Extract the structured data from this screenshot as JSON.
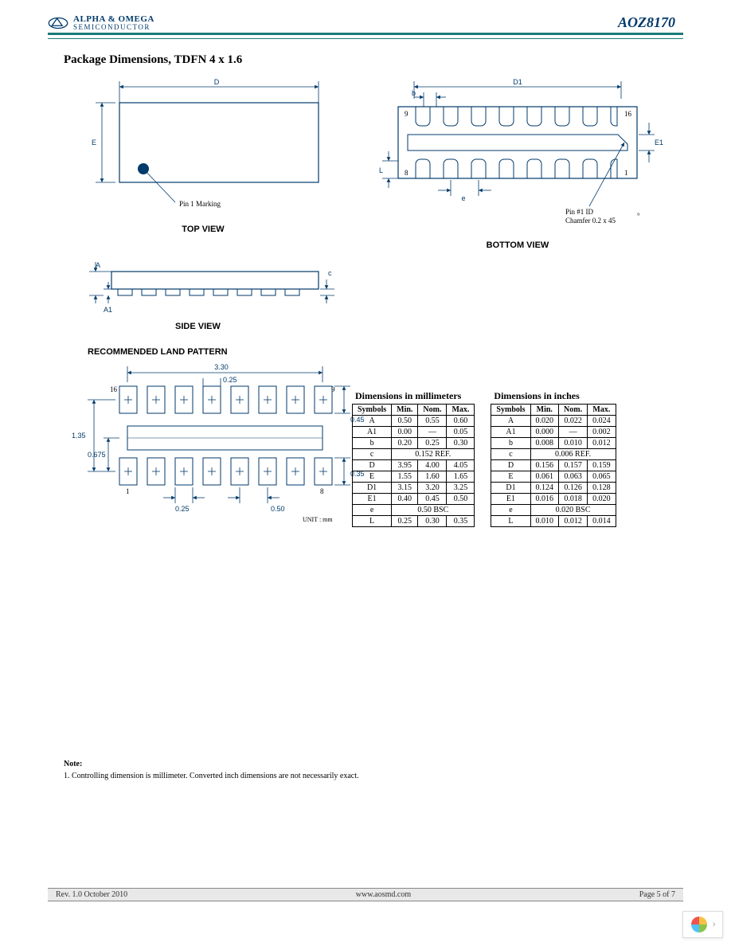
{
  "header": {
    "company_line1": "ALPHA & OMEGA",
    "company_line2": "SEMICONDUCTOR",
    "part_number": "AOZ8170"
  },
  "section_title": "Package Dimensions, TDFN 4 x 1.6",
  "diagrams": {
    "top_view": {
      "label": "TOP VIEW",
      "pin1_text": "Pin 1 Marking",
      "dim_D": "D",
      "dim_E": "E"
    },
    "bottom_view": {
      "label": "BOTTOM VIEW",
      "dim_D1": "D1",
      "dim_b": "b",
      "dim_E1": "E1",
      "dim_L": "L",
      "dim_e": "e",
      "pin9": "9",
      "pin16": "16",
      "pin8": "8",
      "pin1": "1",
      "pin1_id": "Pin #1 ID",
      "chamfer": "Chamfer 0.2 x 45",
      "deg": "°"
    },
    "side_view": {
      "label": "SIDE VIEW",
      "dim_A": "A",
      "dim_A1": "A1",
      "dim_c": "c"
    },
    "land_pattern": {
      "title": "RECOMMENDED LAND PATTERN",
      "unit": "UNIT : mm",
      "d_3_30": "3.30",
      "d_0_25": "0.25",
      "d_0_45": "0.45",
      "d_1_35": "1.35",
      "d_0_675": "0.675",
      "d_0_50": "0.50",
      "d_0_35": "0.35",
      "p16": "16",
      "p9": "9",
      "p1": "1",
      "p8": "8"
    }
  },
  "tables": {
    "mm": {
      "caption": "Dimensions in millimeters",
      "headers": [
        "Symbols",
        "Min.",
        "Nom.",
        "Max."
      ],
      "rows": [
        [
          "A",
          "0.50",
          "0.55",
          "0.60"
        ],
        [
          "A1",
          "0.00",
          "—",
          "0.05"
        ],
        [
          "b",
          "0.20",
          "0.25",
          "0.30"
        ],
        [
          "c",
          "0.152 REF.",
          "",
          ""
        ],
        [
          "D",
          "3.95",
          "4.00",
          "4.05"
        ],
        [
          "E",
          "1.55",
          "1.60",
          "1.65"
        ],
        [
          "D1",
          "3.15",
          "3.20",
          "3.25"
        ],
        [
          "E1",
          "0.40",
          "0.45",
          "0.50"
        ],
        [
          "e",
          "0.50 BSC",
          "",
          ""
        ],
        [
          "L",
          "0.25",
          "0.30",
          "0.35"
        ]
      ]
    },
    "in": {
      "caption": "Dimensions in inches",
      "headers": [
        "Symbols",
        "Min.",
        "Nom.",
        "Max."
      ],
      "rows": [
        [
          "A",
          "0.020",
          "0.022",
          "0.024"
        ],
        [
          "A1",
          "0.000",
          "—",
          "0.002"
        ],
        [
          "b",
          "0.008",
          "0.010",
          "0.012"
        ],
        [
          "c",
          "0.006 REF.",
          "",
          ""
        ],
        [
          "D",
          "0.156",
          "0.157",
          "0.159"
        ],
        [
          "E",
          "0.061",
          "0.063",
          "0.065"
        ],
        [
          "D1",
          "0.124",
          "0.126",
          "0.128"
        ],
        [
          "E1",
          "0.016",
          "0.018",
          "0.020"
        ],
        [
          "e",
          "0.020 BSC",
          "",
          ""
        ],
        [
          "L",
          "0.010",
          "0.012",
          "0.014"
        ]
      ]
    }
  },
  "note": {
    "title": "Note:",
    "text": "1. Controlling dimension is millimeter. Converted inch dimensions are not necessarily exact."
  },
  "footer": {
    "rev": "Rev. 1.0  October 2010",
    "url": "www.aosmd.com",
    "page": "Page 5 of 7"
  },
  "colors": {
    "brand_blue": "#003a6b",
    "teal_rule": "#1a7a7a",
    "footer_bg": "#e8e8e8"
  }
}
